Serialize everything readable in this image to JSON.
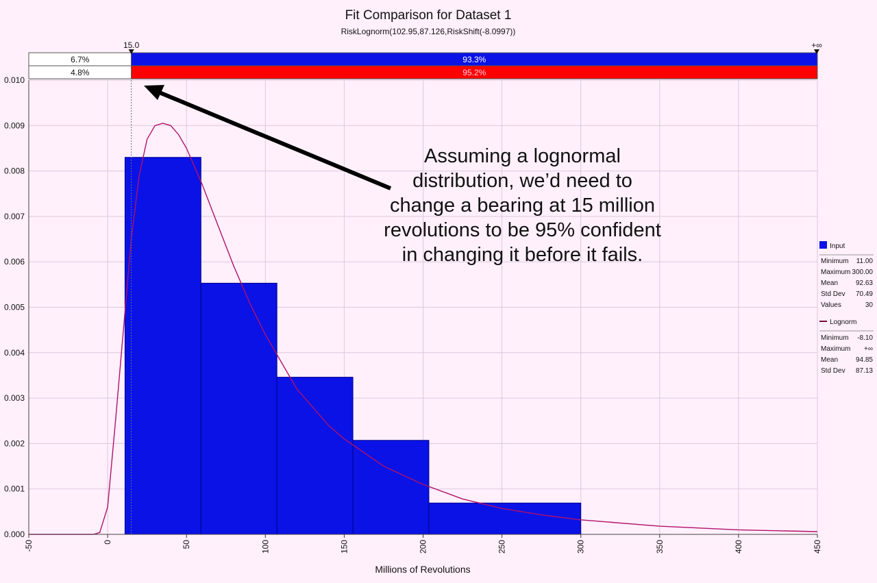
{
  "chart_data": {
    "type": "bar",
    "title": "Fit Comparison for Dataset 1",
    "subtitle": "RiskLognorm(102.95,87.126,RiskShift(-8.0997))",
    "xlabel": "Millions of Revolutions",
    "ylabel": "",
    "xlim": [
      -50,
      450
    ],
    "ylim": [
      0,
      0.01
    ],
    "xticks": [
      "-50",
      "0",
      "50",
      "100",
      "150",
      "200",
      "250",
      "300",
      "350",
      "400",
      "450"
    ],
    "yticks": [
      "0.000",
      "0.001",
      "0.002",
      "0.003",
      "0.004",
      "0.005",
      "0.006",
      "0.007",
      "0.008",
      "0.009",
      "0.010"
    ],
    "grid": true,
    "histogram": {
      "name": "Input",
      "color": "#0a12e6",
      "bins": [
        {
          "x0": 11.0,
          "x1": 59.17,
          "value": 0.0083
        },
        {
          "x0": 59.17,
          "x1": 107.33,
          "value": 0.00553
        },
        {
          "x0": 107.33,
          "x1": 155.5,
          "value": 0.00346
        },
        {
          "x0": 155.5,
          "x1": 203.67,
          "value": 0.00207
        },
        {
          "x0": 203.67,
          "x1": 300.0,
          "value": 0.00069
        }
      ]
    },
    "curve": {
      "name": "Lognorm",
      "color": "#b0106a",
      "points": [
        [
          -50,
          0.0
        ],
        [
          -9,
          0.0
        ],
        [
          -5,
          4e-05
        ],
        [
          0,
          0.0006
        ],
        [
          5,
          0.0025
        ],
        [
          10,
          0.0045
        ],
        [
          15,
          0.0065
        ],
        [
          20,
          0.0079
        ],
        [
          25,
          0.0087
        ],
        [
          30,
          0.009
        ],
        [
          35,
          0.00905
        ],
        [
          40,
          0.009
        ],
        [
          45,
          0.0088
        ],
        [
          50,
          0.0085
        ],
        [
          60,
          0.0077
        ],
        [
          70,
          0.0068
        ],
        [
          80,
          0.0059
        ],
        [
          90,
          0.0051
        ],
        [
          100,
          0.0044
        ],
        [
          110,
          0.0038
        ],
        [
          120,
          0.0032
        ],
        [
          130,
          0.0028
        ],
        [
          140,
          0.0024
        ],
        [
          150,
          0.0021
        ],
        [
          175,
          0.0015
        ],
        [
          200,
          0.0011
        ],
        [
          225,
          0.00078
        ],
        [
          250,
          0.00057
        ],
        [
          275,
          0.00043
        ],
        [
          300,
          0.00032
        ],
        [
          350,
          0.00018
        ],
        [
          400,
          0.0001
        ],
        [
          450,
          6e-05
        ]
      ]
    },
    "delimiter": {
      "value_label": "15.0",
      "right_label": "+∞",
      "input_row": {
        "left": "6.7%",
        "right": "93.3%",
        "color": "#0a12e6"
      },
      "fit_row": {
        "left": "4.8%",
        "right": "95.2%",
        "color": "#ff0000"
      }
    },
    "legend": {
      "placement": "right",
      "input": {
        "name": "Input",
        "stats": [
          {
            "label": "Minimum",
            "value": "11.00"
          },
          {
            "label": "Maximum",
            "value": "300.00"
          },
          {
            "label": "Mean",
            "value": "92.63"
          },
          {
            "label": "Std Dev",
            "value": "70.49"
          },
          {
            "label": "Values",
            "value": "30"
          }
        ]
      },
      "fit": {
        "name": "Lognorm",
        "stats": [
          {
            "label": "Minimum",
            "value": "-8.10"
          },
          {
            "label": "Maximum",
            "value": "+∞"
          },
          {
            "label": "Mean",
            "value": "94.85"
          },
          {
            "label": "Std Dev",
            "value": "87.13"
          }
        ]
      }
    },
    "annotation": "Assuming a lognormal distribution, we’d need to change a bearing at 15 million revolutions to be 95% confident in changing it before it fails."
  }
}
